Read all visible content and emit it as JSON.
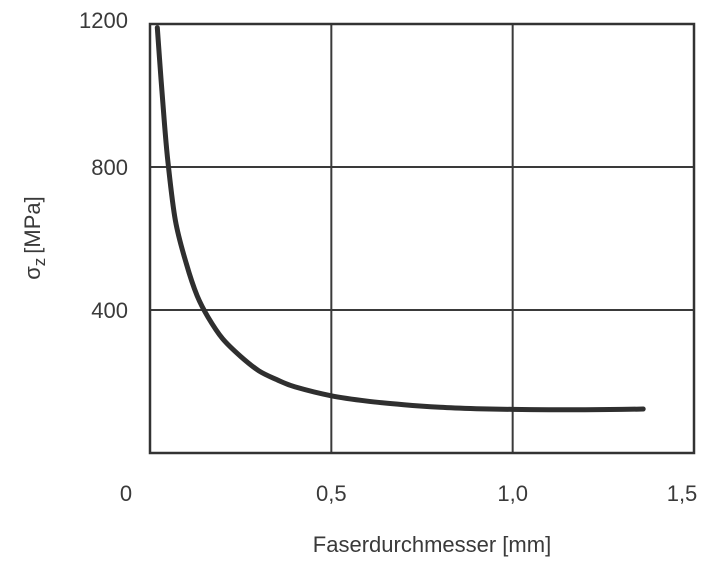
{
  "chart_data": {
    "type": "line",
    "xlabel": "Faserdurchmesser [mm]",
    "ylabel_symbol": "σ",
    "ylabel_subscript": "z",
    "ylabel_unit": "[MPa]",
    "xlim": [
      0,
      1.5
    ],
    "ylim": [
      0,
      1200
    ],
    "x_ticks": [
      {
        "value": 0,
        "label": "0"
      },
      {
        "value": 0.5,
        "label": "0,5"
      },
      {
        "value": 1.0,
        "label": "1,0"
      },
      {
        "value": 1.5,
        "label": "1,5"
      }
    ],
    "y_ticks": [
      {
        "value": 400,
        "label": "400"
      },
      {
        "value": 800,
        "label": "800"
      },
      {
        "value": 1200,
        "label": "1200"
      }
    ],
    "grid": true,
    "series": [
      {
        "color": "#2f2f2f",
        "x": [
          0.02,
          0.03,
          0.04,
          0.05,
          0.07,
          0.1,
          0.13,
          0.16,
          0.2,
          0.25,
          0.3,
          0.35,
          0.4,
          0.5,
          0.6,
          0.7,
          0.8,
          0.9,
          1.0,
          1.1,
          1.2,
          1.3,
          1.36
        ],
        "y": [
          1190,
          1050,
          920,
          810,
          650,
          530,
          440,
          380,
          320,
          270,
          230,
          205,
          185,
          160,
          145,
          135,
          128,
          124,
          122,
          121,
          121,
          122,
          123
        ]
      }
    ]
  }
}
